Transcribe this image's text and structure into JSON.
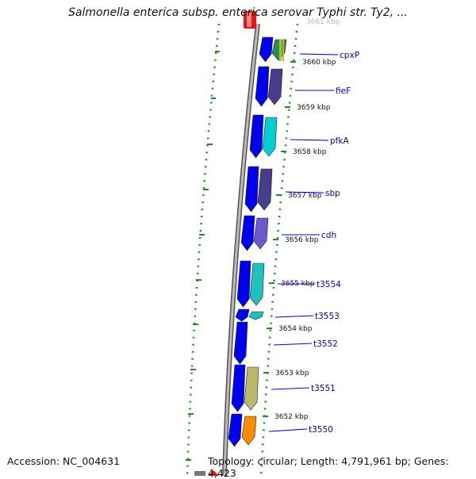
{
  "title": "Salmonella enterica subsp. enterica serovar Typhi str. Ty2, ...",
  "footer": {
    "accession": "Accession: NC_004631",
    "summary": "Topology: circular; Length: 4,791,961 bp; Genes: 4,423"
  },
  "colors": {
    "backbone": "#8a8a8a",
    "forward_gene": "#0000ee",
    "tick": "#228b22",
    "label": "#0000aa",
    "kbp_text": "#111111",
    "leader": "#0000ee"
  },
  "kbp_ticks": [
    {
      "label": "3660 kbp",
      "bp": 3660000
    },
    {
      "label": "3659 kbp",
      "bp": 3659000
    },
    {
      "label": "3658 kbp",
      "bp": 3658000
    },
    {
      "label": "3657 kbp",
      "bp": 3657000
    },
    {
      "label": "3656 kbp",
      "bp": 3656000
    },
    {
      "label": "3655 kbp",
      "bp": 3655000
    },
    {
      "label": "3654 kbp",
      "bp": 3654000
    },
    {
      "label": "3653 kbp",
      "bp": 3653000
    },
    {
      "label": "3652 kbp",
      "bp": 3652000
    }
  ],
  "genes": [
    {
      "name": "cpxP",
      "color": "#2e8b57"
    },
    {
      "name": "fieF",
      "color": "#483d8b"
    },
    {
      "name": "pfkA",
      "color": "#00ced1"
    },
    {
      "name": "sbp",
      "color": "#483d8b"
    },
    {
      "name": "cdh",
      "color": "#6a5acd"
    },
    {
      "name": "t3554",
      "color": "#20c0c0"
    },
    {
      "name": "t3553",
      "color": "#20c0c0"
    },
    {
      "name": "t3552",
      "color": ""
    },
    {
      "name": "t3551",
      "color": "#bdb76b"
    },
    {
      "name": "t3550",
      "color": "#ff8c00"
    }
  ]
}
